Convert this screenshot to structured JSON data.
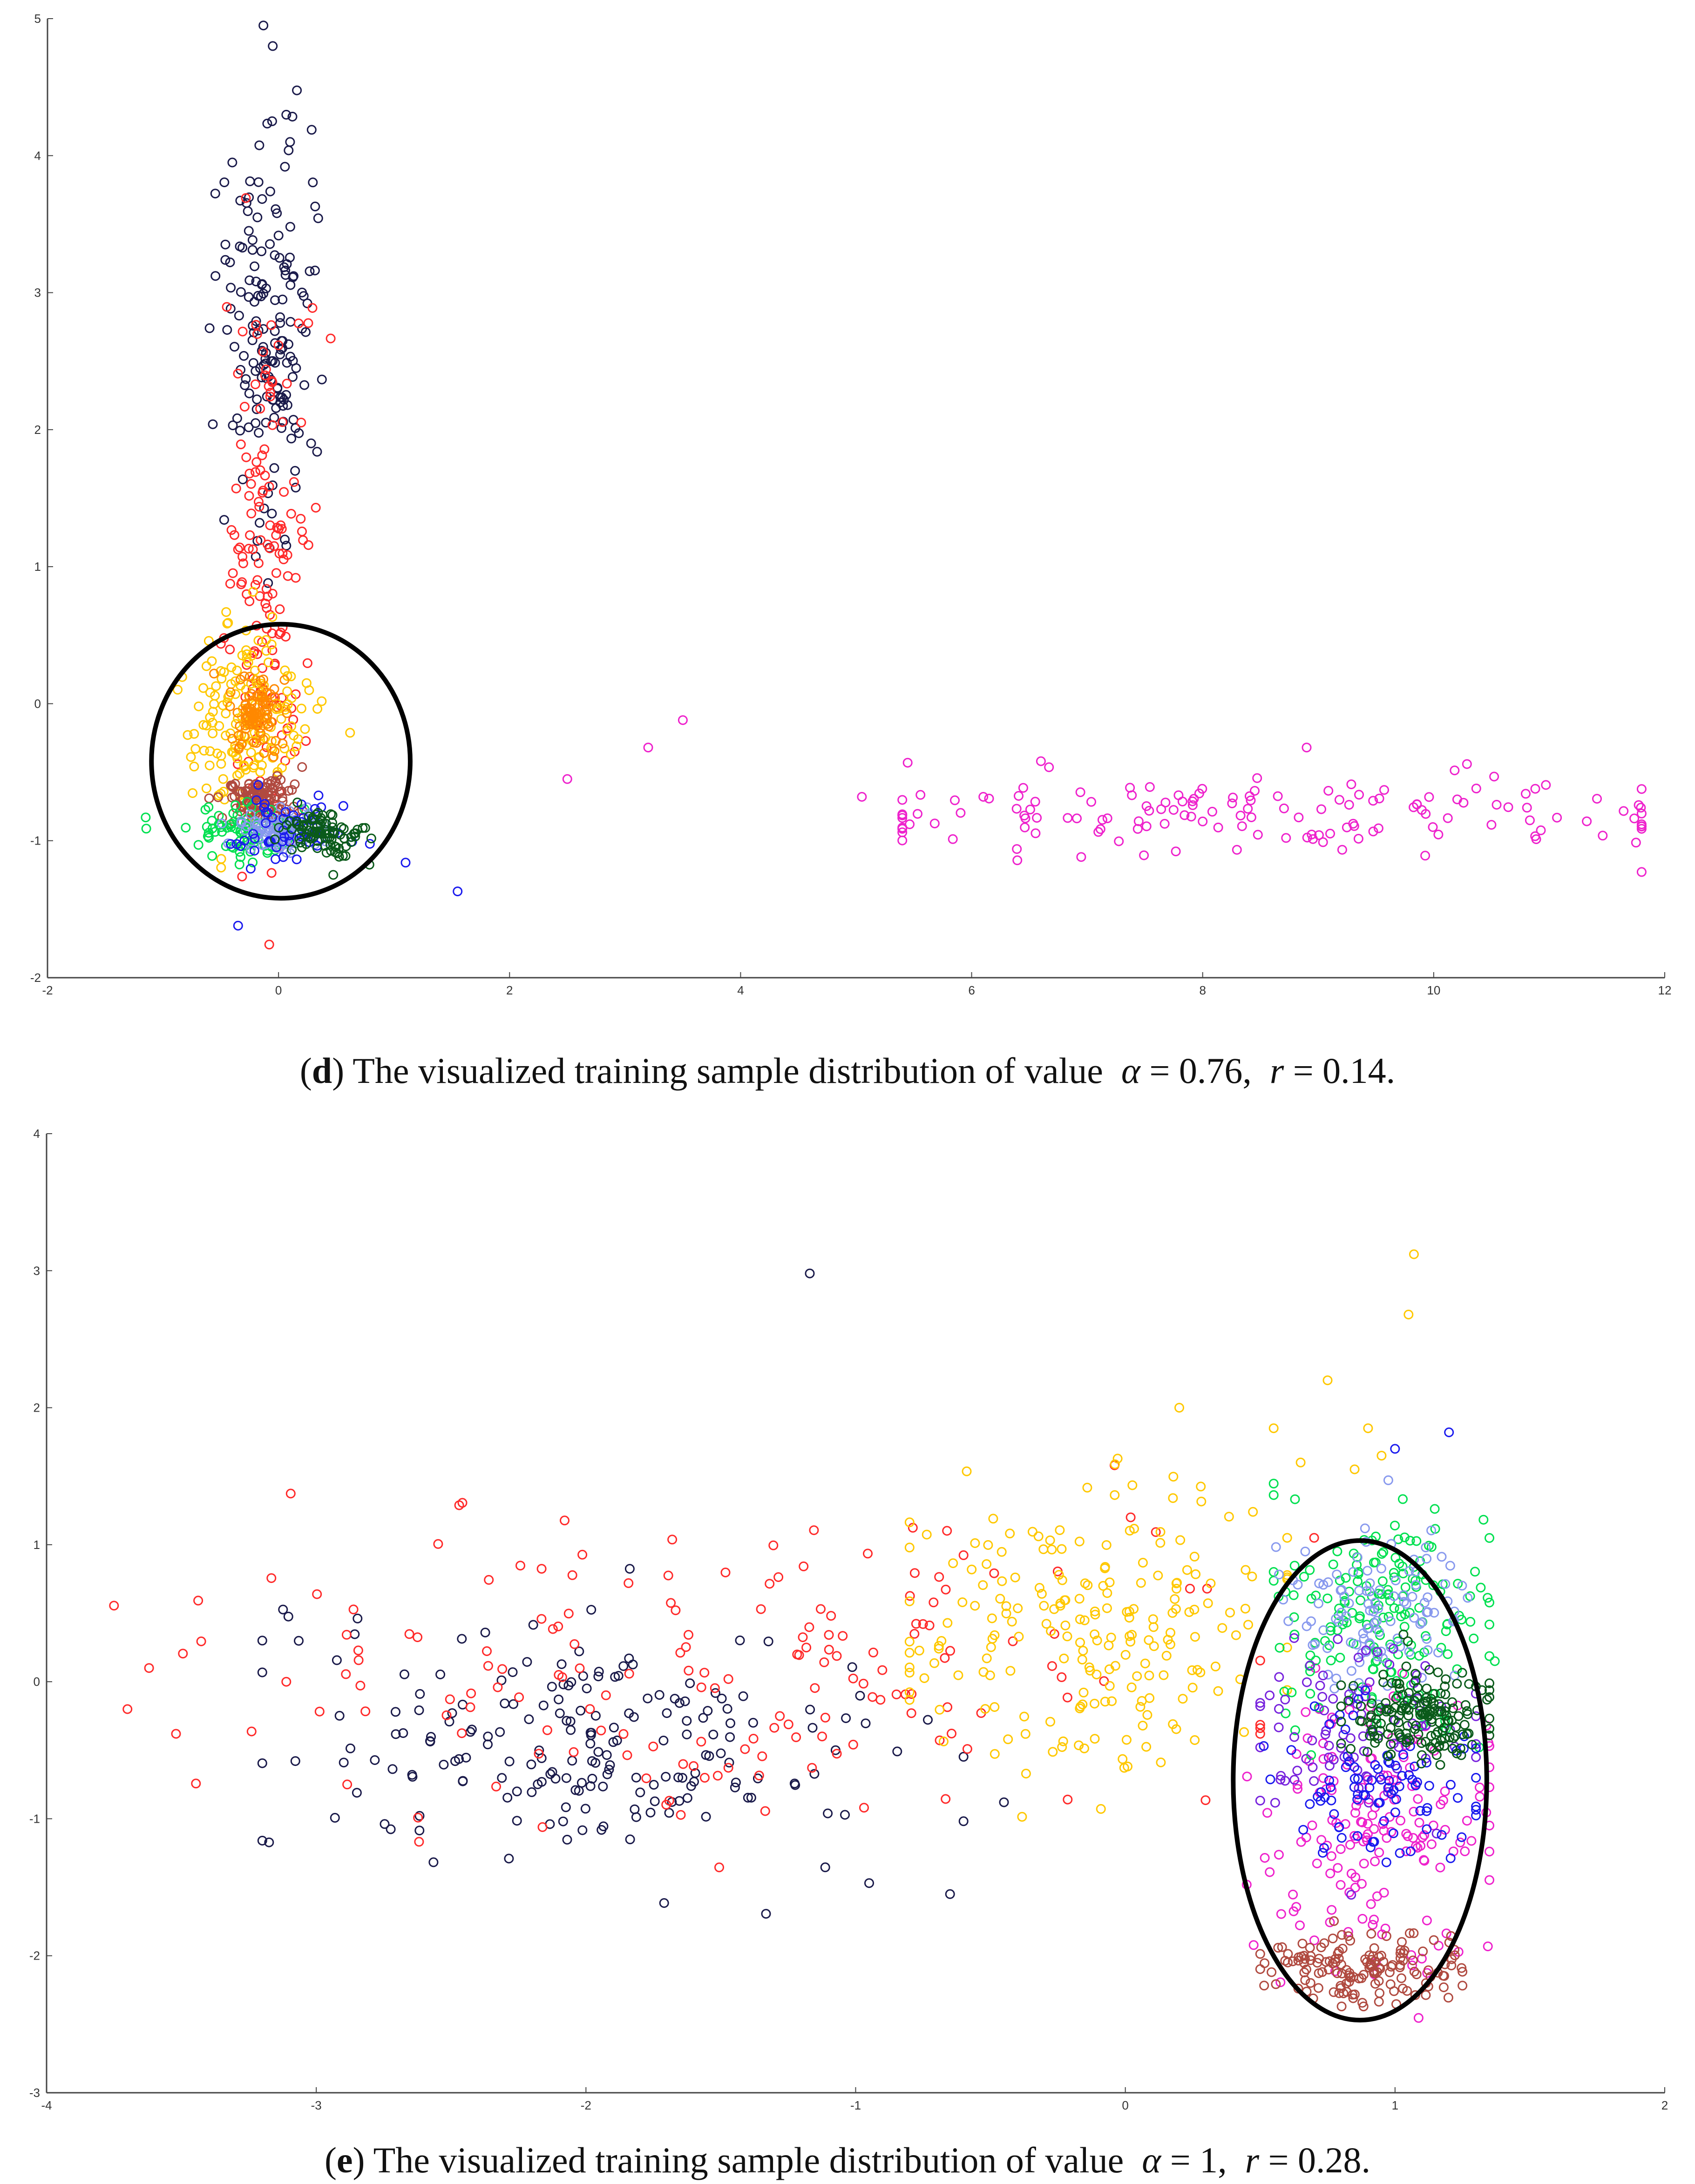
{
  "chart_data": [
    {
      "type": "scatter",
      "panel": "d",
      "title": "",
      "xlabel": "",
      "ylabel": "",
      "xlim": [
        -2,
        12
      ],
      "ylim": [
        -2,
        5
      ],
      "xticks": [
        "-2",
        "0",
        "2",
        "4",
        "6",
        "8",
        "10",
        "12"
      ],
      "yticks": [
        "-2",
        "-1",
        "0",
        "1",
        "2",
        "3",
        "4",
        "5"
      ],
      "marker": "open-circle",
      "series": [
        {
          "name": "navy",
          "color": "#1a1a4a",
          "cx": -0.05,
          "cy": 2.7,
          "sx": 0.2,
          "sy": 0.75,
          "n": 170,
          "extra": [
            [
              -0.05,
              4.8
            ],
            [
              0.1,
              4.1
            ],
            [
              -0.4,
              3.95
            ]
          ]
        },
        {
          "name": "red",
          "color": "#ff2a2a",
          "cx": -0.1,
          "cy": 1.0,
          "sx": 0.18,
          "sy": 1.0,
          "n": 150,
          "extra": []
        },
        {
          "name": "yellow",
          "color": "#ffc800",
          "cx": -0.25,
          "cy": -0.1,
          "sx": 0.28,
          "sy": 0.35,
          "n": 170,
          "extra": []
        },
        {
          "name": "orange",
          "color": "#ff8800",
          "cx": -0.2,
          "cy": -0.05,
          "sx": 0.12,
          "sy": 0.15,
          "n": 90,
          "extra": []
        },
        {
          "name": "brown",
          "color": "#b04a40",
          "cx": -0.15,
          "cy": -0.7,
          "sx": 0.14,
          "sy": 0.09,
          "n": 120,
          "extra": []
        },
        {
          "name": "green",
          "color": "#00e050",
          "cx": -0.3,
          "cy": -0.95,
          "sx": 0.22,
          "sy": 0.1,
          "n": 80,
          "extra": [
            [
              -1.15,
              -0.83
            ]
          ]
        },
        {
          "name": "lightblue",
          "color": "#8899ee",
          "cx": 0.0,
          "cy": -0.93,
          "sx": 0.15,
          "sy": 0.08,
          "n": 100,
          "extra": []
        },
        {
          "name": "blue",
          "color": "#1a1aee",
          "cx": 0.1,
          "cy": -0.9,
          "sx": 0.25,
          "sy": 0.14,
          "n": 60,
          "extra": [
            [
              1.55,
              -1.37
            ],
            [
              -0.35,
              -1.62
            ],
            [
              1.1,
              -1.16
            ]
          ]
        },
        {
          "name": "darkgreen",
          "color": "#0a5a1a",
          "cx": 0.35,
          "cy": -0.97,
          "sx": 0.18,
          "sy": 0.09,
          "n": 90,
          "extra": []
        },
        {
          "name": "magenta",
          "color": "#ee22cc",
          "cx": 8.5,
          "cy": -0.8,
          "sx": 1.9,
          "sy": 0.15,
          "n": 150,
          "xmin": 5.4,
          "xmax": 11.8,
          "extra": [
            [
              2.5,
              -0.55
            ],
            [
              3.2,
              -0.32
            ],
            [
              3.5,
              -0.12
            ],
            [
              5.05,
              -0.68
            ],
            [
              6.6,
              -0.42
            ],
            [
              8.9,
              -0.32
            ]
          ]
        }
      ],
      "annotation": {
        "shape": "ellipse",
        "cx": 0.02,
        "cy": -0.42,
        "rx": 1.12,
        "ry": 1.0,
        "color": "#000000"
      }
    },
    {
      "type": "scatter",
      "panel": "e",
      "title": "",
      "xlabel": "",
      "ylabel": "",
      "xlim": [
        -4,
        2
      ],
      "ylim": [
        -3,
        4
      ],
      "xticks": [
        "-4",
        "-3",
        "-2",
        "-1",
        "0",
        "1",
        "2"
      ],
      "yticks": [
        "-3",
        "-2",
        "-1",
        "0",
        "1",
        "2",
        "3",
        "4"
      ],
      "marker": "open-circle",
      "series": [
        {
          "name": "navy",
          "color": "#1a1a4a",
          "cx": -2.0,
          "cy": -0.45,
          "sx": 0.55,
          "sy": 0.42,
          "n": 200,
          "xmin": -3.2,
          "xmax": -0.6,
          "extra": [
            [
              -1.17,
              2.98
            ],
            [
              -0.65,
              -1.55
            ],
            [
              -0.95,
              -1.47
            ],
            [
              -0.45,
              -0.88
            ]
          ]
        },
        {
          "name": "red",
          "color": "#ff2a2a",
          "cx": -1.5,
          "cy": 0.05,
          "sx": 1.0,
          "sy": 0.55,
          "n": 170,
          "xmin": -3.75,
          "xmax": 0.5,
          "extra": [
            [
              -3.7,
              -0.2
            ],
            [
              -3.62,
              0.1
            ],
            [
              -3.52,
              -0.38
            ],
            [
              -0.04,
              1.58
            ],
            [
              0.7,
              1.05
            ]
          ]
        },
        {
          "name": "yellow",
          "color": "#ffc800",
          "cx": -0.1,
          "cy": 0.35,
          "sx": 0.35,
          "sy": 0.5,
          "n": 210,
          "xmin": -0.8,
          "xmax": 0.6,
          "extra": [
            [
              1.07,
              3.12
            ],
            [
              1.05,
              2.68
            ],
            [
              0.75,
              2.2
            ],
            [
              0.2,
              2.0
            ],
            [
              0.55,
              1.85
            ],
            [
              0.9,
              1.85
            ],
            [
              0.95,
              1.65
            ],
            [
              0.65,
              1.6
            ],
            [
              0.85,
              1.55
            ],
            [
              0.6,
              1.05
            ]
          ]
        },
        {
          "name": "magenta",
          "color": "#ee22cc",
          "cx": 0.95,
          "cy": -1.05,
          "sx": 0.24,
          "sy": 0.55,
          "n": 170,
          "xmin": 0.45,
          "xmax": 1.35,
          "extra": []
        },
        {
          "name": "brown",
          "color": "#b04a40",
          "cx": 0.85,
          "cy": -2.1,
          "sx": 0.18,
          "sy": 0.12,
          "n": 150,
          "xmin": 0.5,
          "xmax": 1.25,
          "extra": []
        },
        {
          "name": "green",
          "color": "#00e050",
          "cx": 0.95,
          "cy": 0.45,
          "sx": 0.2,
          "sy": 0.4,
          "n": 180,
          "xmin": 0.55,
          "xmax": 1.35,
          "extra": [
            [
              1.37,
              0.15
            ]
          ]
        },
        {
          "name": "lightblue",
          "color": "#8899ee",
          "cx": 0.9,
          "cy": 0.55,
          "sx": 0.18,
          "sy": 0.3,
          "n": 110,
          "xmin": 0.5,
          "xmax": 1.3,
          "extra": []
        },
        {
          "name": "purple",
          "color": "#7722dd",
          "cx": 0.85,
          "cy": -0.3,
          "sx": 0.2,
          "sy": 0.35,
          "n": 90,
          "xmin": 0.5,
          "xmax": 1.3,
          "extra": []
        },
        {
          "name": "blue",
          "color": "#1a1aee",
          "cx": 0.95,
          "cy": -0.8,
          "sx": 0.2,
          "sy": 0.25,
          "n": 90,
          "xmin": 0.5,
          "xmax": 1.3,
          "extra": [
            [
              1.2,
              1.82
            ],
            [
              1.0,
              1.7
            ]
          ]
        },
        {
          "name": "darkgreen",
          "color": "#0a5a1a",
          "cx": 1.1,
          "cy": -0.25,
          "sx": 0.13,
          "sy": 0.18,
          "n": 170,
          "xmin": 0.8,
          "xmax": 1.35,
          "extra": []
        }
      ],
      "annotation": {
        "shape": "ellipse",
        "cx": 0.87,
        "cy": -0.72,
        "rx": 0.47,
        "ry": 1.75,
        "color": "#000000"
      }
    }
  ],
  "captions": {
    "d": {
      "label": "d",
      "text": "The visualized training sample distribution of value",
      "alpha_symbol": "α",
      "alpha_value": "= 0.76,",
      "r_symbol": "r",
      "r_value": "= 0.14."
    },
    "e": {
      "label": "e",
      "text": "The visualized training sample distribution of value",
      "alpha_symbol": "α",
      "alpha_value": "= 1,",
      "r_symbol": "r",
      "r_value": "= 0.28."
    }
  }
}
